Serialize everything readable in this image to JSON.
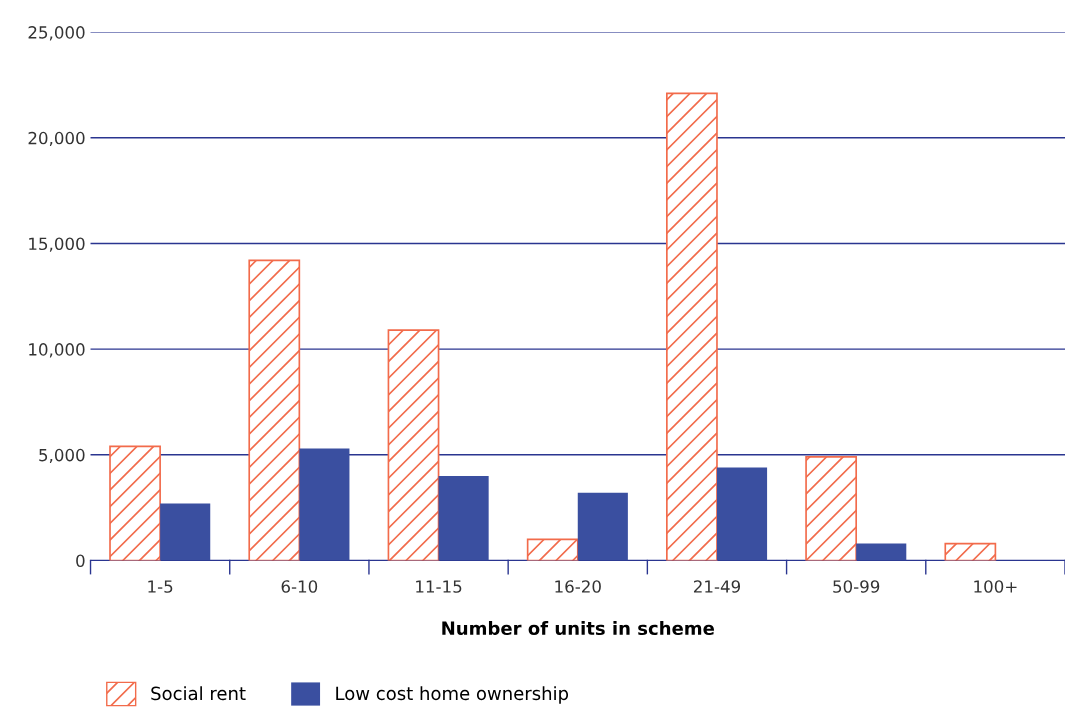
{
  "chart_data": {
    "type": "bar",
    "xlabel": "Number of units in scheme",
    "categories": [
      "1-5",
      "6-10",
      "11-15",
      "16-20",
      "21-49",
      "50-99",
      "100+"
    ],
    "series": [
      {
        "name": "Social rent",
        "color": "#f26b4b",
        "values": [
          5400,
          14200,
          10900,
          1000,
          22100,
          4900,
          800
        ]
      },
      {
        "name": "Low cost home ownership",
        "color": "#3a4fa0",
        "values": [
          2700,
          5300,
          4000,
          3200,
          4400,
          800,
          null
        ]
      }
    ],
    "ylim": [
      0,
      25000
    ],
    "yticks": [
      {
        "value": 0,
        "label": "0"
      },
      {
        "value": 5000,
        "label": "5,000"
      },
      {
        "value": 10000,
        "label": "10,000"
      },
      {
        "value": 15000,
        "label": "15,000"
      },
      {
        "value": 20000,
        "label": "20,000"
      },
      {
        "value": 25000,
        "label": "25,000"
      }
    ],
    "grid": "y",
    "legend": "bottom left"
  }
}
